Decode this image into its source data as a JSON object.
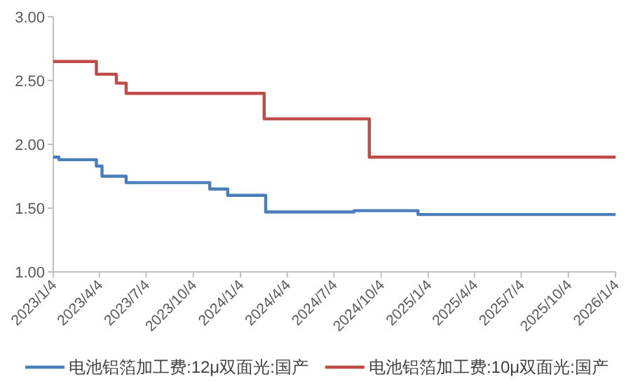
{
  "chart_data": {
    "type": "step",
    "xlim": [
      "2023-01-04",
      "2026-01-04"
    ],
    "xticks": [
      {
        "value": "2023-01-04",
        "label": "2023/1/4"
      },
      {
        "value": "2023-04-04",
        "label": "2023/4/4"
      },
      {
        "value": "2023-07-04",
        "label": "2023/7/4"
      },
      {
        "value": "2023-10-04",
        "label": "2023/10/4"
      },
      {
        "value": "2024-01-04",
        "label": "2024/1/4"
      },
      {
        "value": "2024-04-04",
        "label": "2024/4/4"
      },
      {
        "value": "2024-07-04",
        "label": "2024/7/4"
      },
      {
        "value": "2024-10-04",
        "label": "2024/10/4"
      },
      {
        "value": "2025-01-04",
        "label": "2025/1/4"
      },
      {
        "value": "2025-04-04",
        "label": "2025/4/4"
      },
      {
        "value": "2025-07-04",
        "label": "2025/7/4"
      },
      {
        "value": "2025-10-04",
        "label": "2025/10/4"
      },
      {
        "value": "2026-01-04",
        "label": "2026/1/4"
      }
    ],
    "ylim": [
      1,
      3
    ],
    "yticks": [
      {
        "value": 1,
        "label": "1.00"
      },
      {
        "value": 1.5,
        "label": "1.50"
      },
      {
        "value": 2,
        "label": "2.00"
      },
      {
        "value": 2.5,
        "label": "2.50"
      },
      {
        "value": 3,
        "label": "3.00"
      }
    ],
    "grid": false,
    "legend": "bottom",
    "series": [
      {
        "name": "电池铝箔加工费:12μ双面光:国产",
        "color": "#4a7ebb",
        "x": [
          "2023-01-04",
          "2023-01-15",
          "2023-03-29",
          "2023-04-09",
          "2023-05-26",
          "2023-11-05",
          "2023-12-10",
          "2024-02-22",
          "2024-08-12",
          "2024-12-15",
          "2026-01-04"
        ],
        "values": [
          1.9,
          1.88,
          1.83,
          1.75,
          1.7,
          1.65,
          1.6,
          1.47,
          1.48,
          1.45,
          1.45
        ]
      },
      {
        "name": "电池铝箔加工费:10μ双面光:国产",
        "color": "#be4b48",
        "x": [
          "2023-01-04",
          "2023-03-29",
          "2023-05-07",
          "2023-05-26",
          "2024-02-19",
          "2024-09-11",
          "2026-01-04"
        ],
        "values": [
          2.65,
          2.55,
          2.48,
          2.4,
          2.2,
          1.9,
          1.9
        ]
      }
    ]
  }
}
